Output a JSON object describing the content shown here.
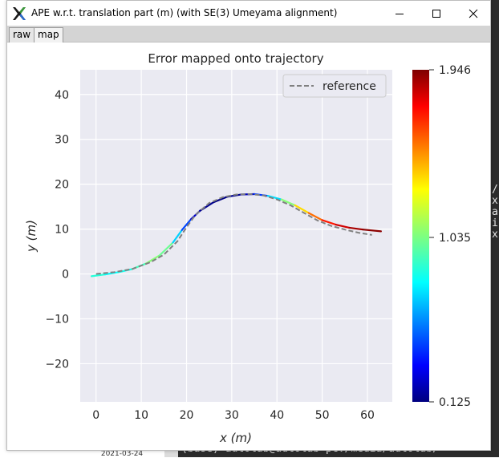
{
  "window": {
    "title": "APE w.r.t. translation part (m) (with SE(3) Umeyama alignment)",
    "tabs": [
      {
        "label": "raw"
      },
      {
        "label": "map"
      }
    ],
    "active_tab": "map"
  },
  "background": {
    "terminal_bottom_text": "(base) autolab@autolab-pc:/media/autolab/",
    "terminal_side_chars": [
      "/",
      "x",
      "a",
      "i",
      "x"
    ],
    "taskbar_date": "2021-03-24"
  },
  "chart_data": {
    "type": "line",
    "title": "Error mapped onto trajectory",
    "xlabel": "x (m)",
    "ylabel": "y (m)",
    "xlim": [
      -3.5,
      65.5
    ],
    "ylim": [
      -28.5,
      45.5
    ],
    "xticks": [
      0,
      10,
      20,
      30,
      40,
      50,
      60
    ],
    "yticks": [
      -20,
      -10,
      0,
      10,
      20,
      30,
      40
    ],
    "grid": true,
    "legend": {
      "position": "top-right",
      "entries": [
        "reference"
      ]
    },
    "series": [
      {
        "name": "reference",
        "style": "dashed",
        "color": "#808080",
        "x": [
          0,
          4,
          8,
          12,
          15,
          18,
          20,
          22,
          25,
          28,
          31,
          34,
          37,
          40,
          43,
          46,
          49,
          52,
          55,
          58,
          61
        ],
        "y": [
          0.0,
          0.4,
          1.1,
          2.6,
          4.3,
          7.3,
          10.4,
          13.2,
          15.8,
          17.1,
          17.7,
          17.8,
          17.5,
          16.6,
          15.3,
          13.6,
          11.9,
          10.7,
          9.9,
          9.2,
          8.7
        ]
      },
      {
        "name": "",
        "style": "colormap",
        "x": [
          -1,
          2,
          5,
          8,
          11,
          14,
          17,
          19,
          21,
          23,
          26,
          29,
          32,
          35,
          38,
          41,
          44,
          47,
          50,
          53,
          56,
          59,
          63
        ],
        "y": [
          -0.5,
          -0.1,
          0.4,
          1.1,
          2.3,
          4.1,
          7.0,
          9.8,
          12.2,
          14.1,
          16.0,
          17.2,
          17.7,
          17.8,
          17.4,
          16.6,
          15.3,
          13.6,
          12.0,
          11.0,
          10.3,
          9.9,
          9.5
        ],
        "error": [
          0.9,
          0.85,
          0.78,
          0.9,
          0.95,
          1.15,
          0.85,
          0.6,
          0.35,
          0.18,
          0.13,
          0.14,
          0.17,
          0.3,
          0.6,
          0.9,
          1.2,
          1.45,
          1.6,
          1.75,
          1.85,
          1.9,
          1.946
        ]
      }
    ],
    "colorbar": {
      "min": 0.125,
      "mid": 1.035,
      "max": 1.946,
      "tick_labels": [
        "1.946",
        "1.035",
        "0.125"
      ],
      "colormap": "jet"
    }
  }
}
